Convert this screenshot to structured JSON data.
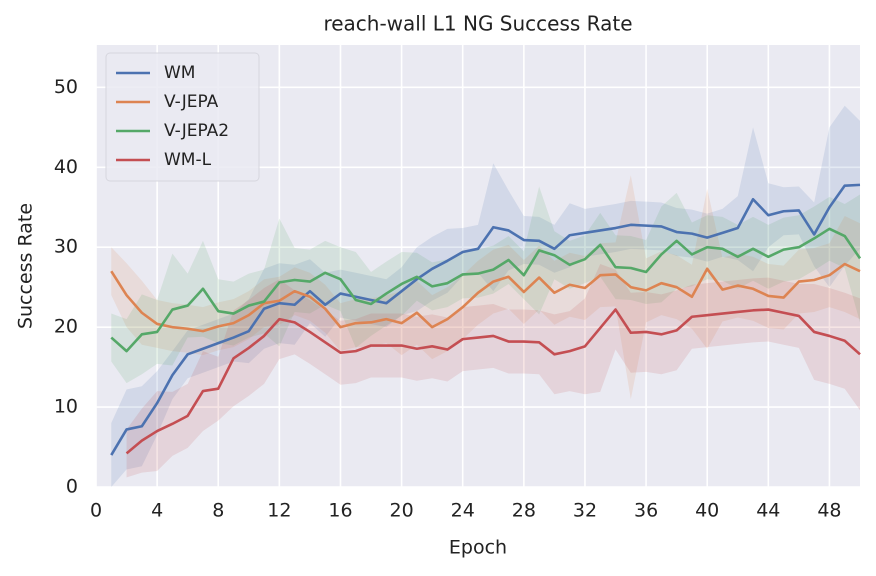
{
  "chart_data": {
    "type": "line",
    "title": "reach-wall L1 NG Success Rate",
    "xlabel": "Epoch",
    "ylabel": "Success Rate",
    "x": [
      1,
      2,
      3,
      4,
      5,
      6,
      7,
      8,
      9,
      10,
      11,
      12,
      13,
      14,
      15,
      16,
      17,
      18,
      19,
      20,
      21,
      22,
      23,
      24,
      25,
      26,
      27,
      28,
      29,
      30,
      31,
      32,
      33,
      34,
      35,
      36,
      37,
      38,
      39,
      40,
      41,
      42,
      43,
      44,
      45,
      46,
      47,
      48,
      49,
      50
    ],
    "xlim": [
      0,
      50
    ],
    "xticks": [
      0,
      4,
      8,
      12,
      16,
      20,
      24,
      28,
      32,
      36,
      40,
      44,
      48
    ],
    "ylim": [
      0,
      55.3
    ],
    "yticks": [
      0,
      10,
      20,
      30,
      40,
      50
    ],
    "grid": true,
    "legend": "upper left",
    "background": "#eaeaf2",
    "series": [
      {
        "name": "WM",
        "color": "#4c72b0",
        "values": [
          4,
          7.2,
          7.6,
          10.5,
          14,
          16.6,
          17.3,
          18,
          18.7,
          19.5,
          22.3,
          23,
          22.8,
          24.5,
          22.8,
          24.2,
          23.8,
          23.4,
          23,
          24.5,
          26,
          27.3,
          28.3,
          29.4,
          29.8,
          32.5,
          32.1,
          30.9,
          30.8,
          29.8,
          31.5,
          31.8,
          32.1,
          32.4,
          32.8,
          32.7,
          32.6,
          31.9,
          31.7,
          31.2,
          31.8,
          32.4,
          36,
          34,
          34.5,
          34.6,
          31.6,
          35,
          37.7,
          37.8
        ],
        "errors": [
          4,
          5,
          5,
          4,
          3,
          3,
          3,
          3,
          3,
          4,
          5,
          5,
          5,
          4,
          4,
          3,
          3,
          3,
          3,
          3,
          4,
          4,
          4,
          3,
          3,
          8,
          5,
          3,
          3,
          3,
          4,
          3,
          3,
          3,
          3,
          3,
          3,
          3,
          3,
          3,
          3,
          4,
          9,
          4,
          3,
          3,
          4,
          10,
          10,
          8
        ]
      },
      {
        "name": "V-JEPA",
        "color": "#dd8452",
        "values": [
          27,
          24,
          21.8,
          20.4,
          20,
          19.8,
          19.5,
          20.1,
          20.5,
          21.5,
          23,
          23.3,
          24.5,
          23.8,
          22.3,
          20,
          20.5,
          20.6,
          21,
          20.5,
          21.8,
          20,
          21,
          22.5,
          24.3,
          25.7,
          26.3,
          24.4,
          26.2,
          24.3,
          25.3,
          24.9,
          26.5,
          26.6,
          25,
          24.6,
          25.5,
          25,
          23.8,
          27.3,
          24.7,
          25.2,
          24.8,
          23.9,
          23.7,
          25.7,
          25.9,
          26.5,
          27.9,
          27
        ],
        "errors": [
          3,
          4,
          4,
          3,
          3,
          3,
          3,
          3,
          3,
          3,
          3,
          3,
          3,
          3,
          3,
          3,
          3,
          3,
          3,
          4,
          4,
          4,
          4,
          4,
          4,
          4,
          4,
          4,
          4,
          4,
          4,
          4,
          4,
          4,
          14,
          4,
          4,
          4,
          4,
          10,
          4,
          4,
          4,
          4,
          4,
          4,
          4,
          4,
          6,
          6
        ]
      },
      {
        "name": "V-JEPA2",
        "color": "#55a868",
        "values": [
          18.7,
          17,
          19.1,
          19.4,
          22.2,
          22.7,
          24.8,
          22,
          21.7,
          22.7,
          23.2,
          25.6,
          25.9,
          25.7,
          26.8,
          26,
          23.4,
          22.9,
          24.2,
          25.4,
          26.3,
          25.1,
          25.5,
          26.6,
          26.7,
          27.2,
          28.4,
          26.5,
          29.6,
          29,
          27.8,
          28.5,
          30.3,
          27.5,
          27.4,
          26.9,
          29.1,
          30.8,
          29.1,
          30,
          29.8,
          28.8,
          29.8,
          28.8,
          29.7,
          30,
          31.1,
          32.3,
          31.4,
          28.6
        ],
        "errors": [
          3,
          4,
          5,
          4,
          7,
          4,
          6,
          4,
          4,
          4,
          4,
          8,
          4,
          4,
          4,
          4,
          6,
          4,
          4,
          4,
          3,
          3,
          3,
          3,
          3,
          3,
          3,
          3,
          8,
          3,
          3,
          3,
          4,
          4,
          4,
          4,
          6,
          6,
          4,
          4,
          4,
          4,
          4,
          4,
          4,
          4,
          4,
          4,
          4,
          8
        ]
      },
      {
        "name": "WM-L",
        "color": "#c44e52",
        "values": [
          null,
          4.2,
          5.8,
          7,
          7.9,
          8.9,
          12,
          12.3,
          16.1,
          17.4,
          18.9,
          21,
          20.6,
          19.4,
          18.1,
          16.8,
          17,
          17.7,
          17.7,
          17.7,
          17.3,
          17.6,
          17.2,
          18.5,
          18.7,
          18.9,
          18.2,
          18.2,
          18.1,
          16.6,
          17,
          17.6,
          19.9,
          22.2,
          19.3,
          19.4,
          19.1,
          19.6,
          21.3,
          21.5,
          21.7,
          21.9,
          22.1,
          22.2,
          21.8,
          21.4,
          19.4,
          18.9,
          18.3,
          16.6
        ],
        "errors": [
          null,
          3,
          4,
          5,
          4,
          4,
          5,
          4,
          6,
          6,
          6,
          5,
          4,
          4,
          4,
          4,
          4,
          4,
          4,
          4,
          4,
          4,
          4,
          4,
          4,
          4,
          4,
          4,
          4,
          5,
          5,
          6,
          8,
          5,
          5,
          5,
          5,
          5,
          4,
          4,
          4,
          4,
          4,
          4,
          4,
          4,
          6,
          6,
          6,
          7
        ]
      }
    ]
  }
}
